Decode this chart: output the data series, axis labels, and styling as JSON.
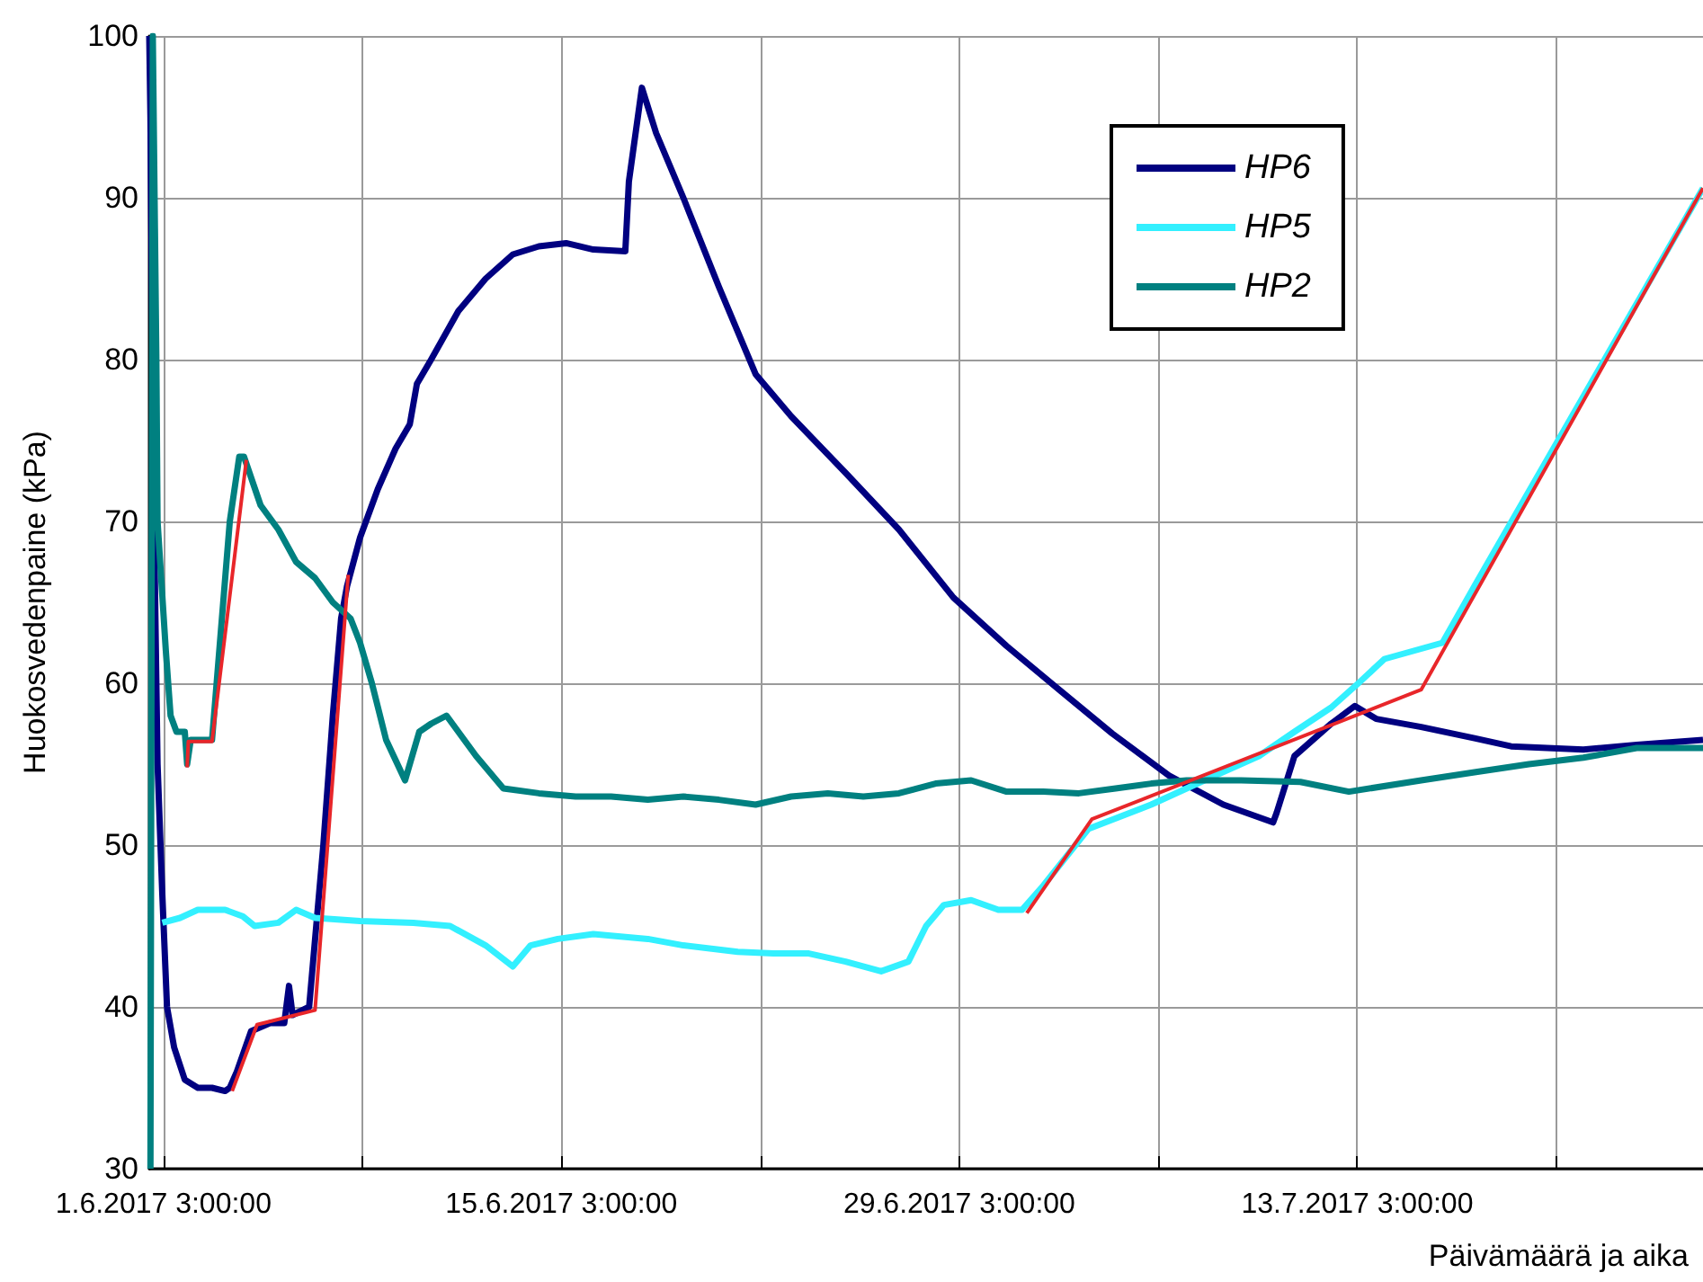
{
  "chart_data": {
    "type": "line",
    "xlabel": "Päivämäärä ja aika",
    "ylabel": "Huokosvedenpaine (kPa)",
    "xlim": [
      "2017-05-31T15:00",
      "2017-07-25T07:00"
    ],
    "xticks": [
      {
        "value": "2017-06-01T03:00",
        "label": "1.6.2017 3:00:00"
      },
      {
        "value": "2017-06-08T03:00",
        "label": null
      },
      {
        "value": "2017-06-15T03:00",
        "label": "15.6.2017 3:00:00"
      },
      {
        "value": "2017-06-22T03:00",
        "label": null
      },
      {
        "value": "2017-06-29T03:00",
        "label": "29.6.2017 3:00:00"
      },
      {
        "value": "2017-07-06T03:00",
        "label": null
      },
      {
        "value": "2017-07-13T03:00",
        "label": "13.7.2017 3:00:00"
      },
      {
        "value": "2017-07-20T03:00",
        "label": null
      }
    ],
    "ylim": [
      30,
      100
    ],
    "yticks": [
      30,
      40,
      50,
      60,
      70,
      80,
      90,
      100
    ],
    "grid": true,
    "legend": "top right",
    "series": [
      {
        "name": "HP6",
        "color": "#000080",
        "x": [
          "2017-05-31T15:00",
          "2017-05-31T16:00",
          "2017-05-31T19:00",
          "2017-05-31T22:00",
          "2017-06-01T02:00",
          "2017-06-01T06:00",
          "2017-06-01T12:00",
          "2017-06-01T21:00",
          "2017-06-02T08:00",
          "2017-06-02T20:00",
          "2017-06-03T07:00",
          "2017-06-03T11:00",
          "2017-06-03T17:00",
          "2017-06-04T05:00",
          "2017-06-04T21:00",
          "2017-06-05T09:00",
          "2017-06-05T13:00",
          "2017-06-05T16:00",
          "2017-06-06T06:00",
          "2017-06-06T12:00",
          "2017-06-06T18:00",
          "2017-06-07T02:00",
          "2017-06-07T09:00",
          "2017-06-07T14:00",
          "2017-06-08T01:00",
          "2017-06-08T16:00",
          "2017-06-09T07:00",
          "2017-06-09T19:00",
          "2017-06-10T01:00",
          "2017-06-10T13:00",
          "2017-06-11T12:00",
          "2017-06-12T11:00",
          "2017-06-13T10:00",
          "2017-06-14T08:00",
          "2017-06-15T07:00",
          "2017-06-16T06:00",
          "2017-06-17T09:00",
          "2017-06-17T12:00",
          "2017-06-17T23:00",
          "2017-06-18T11:00",
          "2017-06-19T10:00",
          "2017-06-20T16:00",
          "2017-06-21T23:00",
          "2017-06-23T05:00",
          "2017-06-25T03:00",
          "2017-06-27T00:00",
          "2017-06-28T22:00",
          "2017-06-30T19:00",
          "2017-07-02T17:00",
          "2017-07-04T12:00",
          "2017-07-06T12:00",
          "2017-07-08T10:00",
          "2017-07-10T04:00",
          "2017-07-10T07:00",
          "2017-07-10T22:00",
          "2017-07-12T05:00",
          "2017-07-13T01:00",
          "2017-07-13T19:00",
          "2017-07-15T09:00",
          "2017-07-17T06:00",
          "2017-07-18T13:00",
          "2017-07-21T02:00",
          "2017-07-22T23:00",
          "2017-07-25T07:00"
        ],
        "values": [
          100,
          95,
          70,
          55,
          47,
          40,
          37.5,
          35.5,
          35,
          35,
          34.8,
          35,
          36,
          38.5,
          39,
          39,
          41.3,
          39.5,
          40,
          45,
          50,
          58,
          64,
          66,
          69,
          72,
          74.5,
          76,
          78.5,
          80,
          83,
          85,
          86.5,
          87,
          87.2,
          86.8,
          86.7,
          91,
          96.8,
          94,
          90,
          84.5,
          79.1,
          76.5,
          73,
          69.5,
          65.3,
          62.3,
          59.5,
          56.9,
          54.3,
          52.5,
          51.4,
          52,
          55.5,
          57.5,
          58.6,
          57.8,
          57.3,
          56.6,
          56.1,
          55.9,
          56.2,
          56.5
        ]
      },
      {
        "name": "HP5",
        "color": "#33f0ff",
        "x": [
          "2017-06-01T02:00",
          "2017-06-01T17:00",
          "2017-06-02T08:00",
          "2017-06-03T07:00",
          "2017-06-03T22:00",
          "2017-06-04T08:00",
          "2017-06-05T04:00",
          "2017-06-05T19:00",
          "2017-06-06T11:00",
          "2017-06-08T01:00",
          "2017-06-09T22:00",
          "2017-06-11T05:00",
          "2017-06-12T11:00",
          "2017-06-13T10:00",
          "2017-06-14T01:00",
          "2017-06-15T00:00",
          "2017-06-16T06:00",
          "2017-06-18T04:00",
          "2017-06-19T10:00",
          "2017-06-21T08:00",
          "2017-06-22T14:00",
          "2017-06-23T20:00",
          "2017-06-25T03:00",
          "2017-06-26T09:00",
          "2017-06-27T08:00",
          "2017-06-27T23:00",
          "2017-06-28T14:00",
          "2017-06-29T13:00",
          "2017-06-30T12:00",
          "2017-07-01T08:00",
          "2017-07-02T02:00",
          "2017-07-03T16:00",
          "2017-07-05T21:00",
          "2017-07-07T18:00",
          "2017-07-09T16:00",
          "2017-07-10T22:00",
          "2017-07-12T05:00",
          "2017-07-13T04:00",
          "2017-07-14T02:00",
          "2017-07-16T03:00",
          "2017-07-17T06:00",
          "2017-07-25T07:00"
        ],
        "values": [
          45.2,
          45.5,
          46,
          46,
          45.6,
          45,
          45.2,
          46,
          45.5,
          45.3,
          45.2,
          45,
          43.8,
          42.5,
          43.8,
          44.2,
          44.5,
          44.2,
          43.8,
          43.4,
          43.3,
          43.3,
          42.8,
          42.2,
          42.8,
          45,
          46.3,
          46.6,
          46,
          46,
          47.5,
          51,
          52.5,
          54,
          55.5,
          57,
          58.5,
          60,
          61.5,
          62.5,
          66,
          90.6
        ]
      },
      {
        "name": "HP2",
        "color": "#008080",
        "x": [
          "2017-05-31T16:00",
          "2017-05-31T18:00",
          "2017-05-31T21:00",
          "2017-05-31T22:00",
          "2017-06-01T05:00",
          "2017-06-01T09:00",
          "2017-06-01T14:00",
          "2017-06-01T21:00",
          "2017-06-01T23:00",
          "2017-06-02T02:00",
          "2017-06-02T20:00",
          "2017-06-03T11:00",
          "2017-06-03T19:00",
          "2017-06-03T23:00",
          "2017-06-04T13:00",
          "2017-06-05T04:00",
          "2017-06-05T19:00",
          "2017-06-06T11:00",
          "2017-06-07T02:00",
          "2017-06-07T17:00",
          "2017-06-08T01:00",
          "2017-06-08T11:00",
          "2017-06-08T23:00",
          "2017-06-09T15:00",
          "2017-06-10T03:00",
          "2017-06-10T13:00",
          "2017-06-11T02:00",
          "2017-06-11T12:00",
          "2017-06-12T03:00",
          "2017-06-13T02:00",
          "2017-06-14T08:00",
          "2017-06-15T15:00",
          "2017-06-16T21:00",
          "2017-06-18T04:00",
          "2017-06-19T10:00",
          "2017-06-20T16:00",
          "2017-06-21T23:00",
          "2017-06-23T05:00",
          "2017-06-24T12:00",
          "2017-06-25T18:00",
          "2017-06-27T00:00",
          "2017-06-28T07:00",
          "2017-06-29T13:00",
          "2017-06-30T19:00",
          "2017-07-02T02:00",
          "2017-07-03T08:00",
          "2017-07-04T15:00",
          "2017-07-05T21:00",
          "2017-07-07T03:00",
          "2017-07-09T01:00",
          "2017-07-11T03:00",
          "2017-07-12T20:00",
          "2017-07-15T09:00",
          "2017-07-17T06:00",
          "2017-07-19T04:00",
          "2017-07-21T02:00",
          "2017-07-22T23:00",
          "2017-07-25T07:00"
        ],
        "values": [
          30,
          100,
          80,
          70,
          62,
          58,
          57,
          57,
          55,
          56.5,
          56.5,
          70,
          74,
          74,
          71,
          69.5,
          67.5,
          66.5,
          65,
          64,
          62.5,
          60,
          56.5,
          54,
          57,
          57.5,
          58,
          57,
          55.5,
          53.5,
          53.2,
          53,
          53,
          52.8,
          53,
          52.8,
          52.5,
          53,
          53.2,
          53,
          53.2,
          53.8,
          54,
          53.3,
          53.3,
          53.2,
          53.5,
          53.8,
          54,
          54,
          53.9,
          53.3,
          54,
          54.5,
          55,
          55.4,
          56,
          56
        ]
      },
      {
        "color": "#e8262a",
        "x": [
          "2017-06-01T23:00",
          "2017-06-02T00:00",
          "2017-06-02T20:00",
          "2017-06-04T01:00"
        ],
        "values": [
          54.8,
          56.4,
          56.4,
          73.8
        ]
      },
      {
        "color": "#e8262a",
        "x": [
          "2017-06-03T13:00",
          "2017-06-04T10:00",
          "2017-06-06T11:00",
          "2017-06-07T15:00"
        ],
        "values": [
          34.8,
          38.9,
          39.8,
          66.7
        ]
      },
      {
        "color": "#e8262a",
        "x": [
          "2017-07-01T12:00",
          "2017-07-03T19:00",
          "2017-07-15T09:00",
          "2017-07-25T07:00"
        ],
        "values": [
          45.8,
          51.6,
          59.6,
          90.6
        ]
      }
    ]
  }
}
